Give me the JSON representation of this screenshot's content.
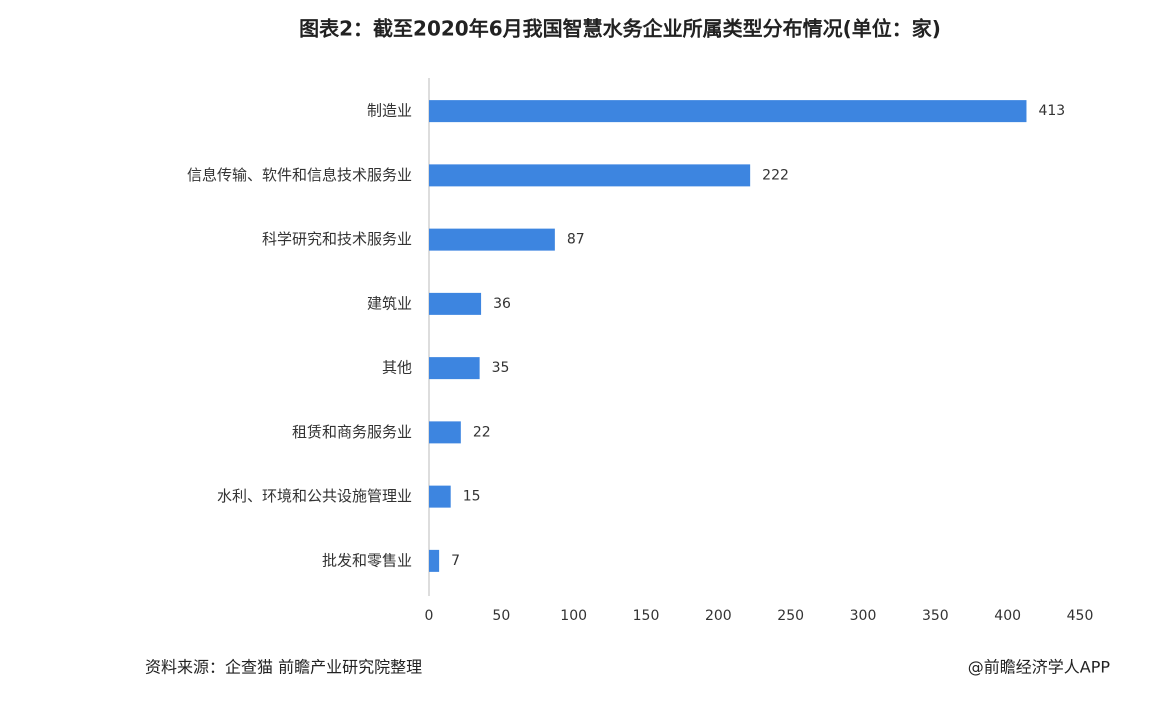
{
  "chart_data": {
    "type": "barh",
    "title": "图表2：截至2020年6月我国智慧水务企业所属类型分布情况(单位：家)",
    "categories": [
      "制造业",
      "信息传输、软件和信息技术服务业",
      "科学研究和技术服务业",
      "建筑业",
      "其他",
      "租赁和商务服务业",
      "水利、环境和公共设施管理业",
      "批发和零售业"
    ],
    "values": [
      413,
      222,
      87,
      36,
      35,
      22,
      15,
      7
    ],
    "color": "#3d85e0",
    "xlim": [
      0,
      450
    ],
    "xticks": [
      0,
      50,
      100,
      150,
      200,
      250,
      300,
      350,
      400,
      450
    ],
    "grid": false,
    "source": "资料来源：企查猫 前瞻产业研究院整理",
    "credit": "@前瞻经济学人APP"
  }
}
